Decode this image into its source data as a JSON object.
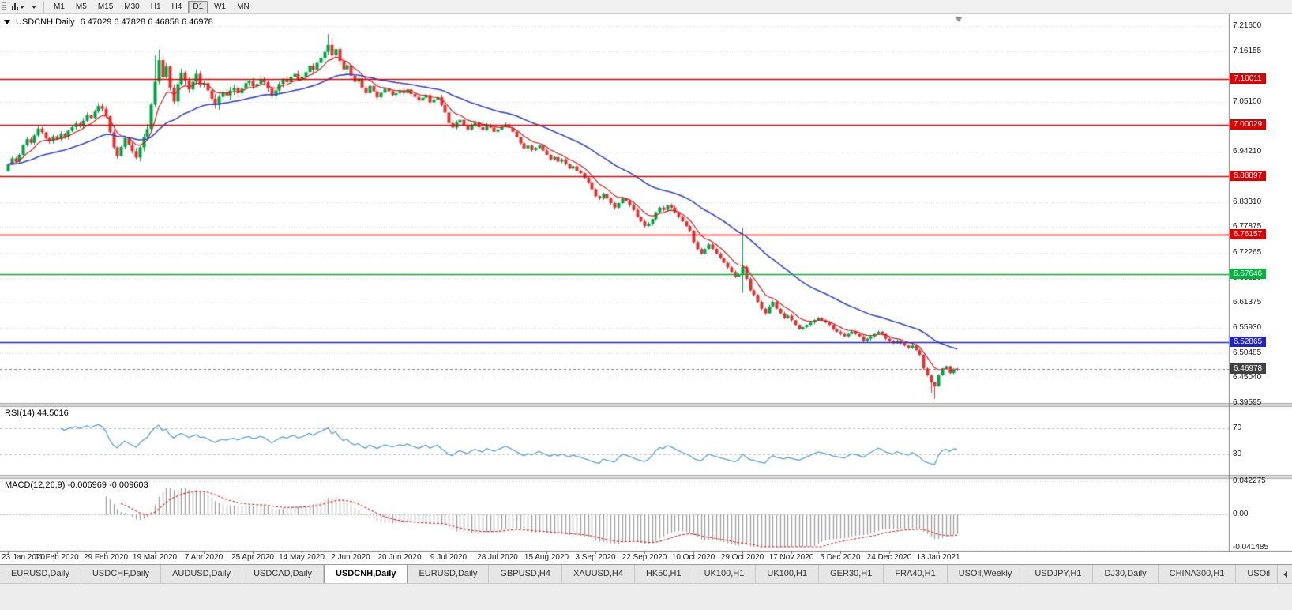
{
  "toolbar": {
    "timeframes": [
      {
        "label": "M1",
        "active": false
      },
      {
        "label": "M5",
        "active": false
      },
      {
        "label": "M15",
        "active": false
      },
      {
        "label": "M30",
        "active": false
      },
      {
        "label": "H1",
        "active": false
      },
      {
        "label": "H4",
        "active": false
      },
      {
        "label": "D1",
        "active": true
      },
      {
        "label": "W1",
        "active": false
      },
      {
        "label": "MN",
        "active": false
      }
    ],
    "icons": [
      "chart-type-icon",
      "dropdown-caret-icon"
    ]
  },
  "chart": {
    "symbol": "USDCNH,Daily",
    "ohlc_text": "6.47029 6.47828 6.46858 6.46978",
    "chart_data": {
      "type": "candlestick",
      "symbol": "USDCNH",
      "timeframe": "Daily",
      "ohlc_last": {
        "open": 6.47029,
        "high": 6.47828,
        "low": 6.46858,
        "close": 6.46978
      },
      "price_axis_labels": [
        "7.21600",
        "7.16155",
        "7.05100",
        "6.94210",
        "6.83310",
        "6.77875",
        "6.72265",
        "6.66820",
        "6.61375",
        "6.55930",
        "6.50485",
        "6.45040",
        "6.39595"
      ],
      "x_axis_dates": [
        "23 Jan 2020",
        "11 Feb 2020",
        "29 Feb 2020",
        "19 Mar 2020",
        "7 Apr 2020",
        "25 Apr 2020",
        "14 May 2020",
        "2 Jun 2020",
        "20 Jun 2020",
        "9 Jul 2020",
        "28 Jul 2020",
        "15 Aug 2020",
        "3 Sep 2020",
        "22 Sep 2020",
        "10 Oct 2020",
        "29 Oct 2020",
        "17 Nov 2020",
        "5 Dec 2020",
        "24 Dec 2020",
        "13 Jan 2021"
      ],
      "levels": [
        {
          "label": "7.10011",
          "price": 7.10011,
          "color": "#dd0000",
          "kind": "horizontal-line"
        },
        {
          "label": "7.00029",
          "price": 7.00029,
          "color": "#dd0000",
          "kind": "horizontal-line"
        },
        {
          "label": "6.88897",
          "price": 6.88897,
          "color": "#dd0000",
          "kind": "horizontal-line"
        },
        {
          "label": "6.76157",
          "price": 6.76157,
          "color": "#dd0000",
          "kind": "horizontal-line"
        },
        {
          "label": "6.67646",
          "price": 6.67646,
          "color": "#00b33c",
          "kind": "horizontal-line"
        },
        {
          "label": "6.52865",
          "price": 6.52865,
          "color": "#2222cc",
          "kind": "horizontal-line"
        },
        {
          "label": "6.46978",
          "price": 6.46978,
          "color": "#404040",
          "kind": "last-price"
        }
      ],
      "visible_price_range": [
        6.396,
        7.2418
      ],
      "first_open": 6.9,
      "closes": [
        6.915,
        6.928,
        6.921,
        6.936,
        6.957,
        6.97,
        6.962,
        6.978,
        6.993,
        6.985,
        6.972,
        6.965,
        6.976,
        6.97,
        6.982,
        6.975,
        6.988,
        6.996,
        7.004,
        6.998,
        7.01,
        7.022,
        7.016,
        7.03,
        7.042,
        7.036,
        7.02,
        6.985,
        6.952,
        6.933,
        6.953,
        6.972,
        6.958,
        6.944,
        6.93,
        6.952,
        6.975,
        6.992,
        7.045,
        7.095,
        7.142,
        7.105,
        7.128,
        7.082,
        7.052,
        7.09,
        7.115,
        7.098,
        7.078,
        7.095,
        7.112,
        7.088,
        7.092,
        7.076,
        7.058,
        7.044,
        7.062,
        7.072,
        7.065,
        7.076,
        7.082,
        7.07,
        7.08,
        7.092,
        7.096,
        7.085,
        7.09,
        7.1,
        7.094,
        7.08,
        7.064,
        7.076,
        7.09,
        7.101,
        7.094,
        7.106,
        7.112,
        7.1,
        7.106,
        7.116,
        7.13,
        7.121,
        7.136,
        7.146,
        7.16,
        7.175,
        7.152,
        7.166,
        7.14,
        7.122,
        7.131,
        7.108,
        7.095,
        7.102,
        7.082,
        7.07,
        7.086,
        7.074,
        7.061,
        7.071,
        7.08,
        7.074,
        7.066,
        7.07,
        7.076,
        7.07,
        7.078,
        7.068,
        7.062,
        7.054,
        7.06,
        7.066,
        7.05,
        7.056,
        7.061,
        7.044,
        7.028,
        7.005,
        6.995,
        7.006,
        7.012,
        7.001,
        6.991,
        7.0,
        7.006,
        6.996,
        6.99,
        7.001,
        6.995,
        6.986,
        6.991,
        6.996,
        7.002,
        6.995,
        6.986,
        6.975,
        6.961,
        6.95,
        6.956,
        6.946,
        6.951,
        6.956,
        6.945,
        6.936,
        6.926,
        6.931,
        6.921,
        6.926,
        6.916,
        6.906,
        6.911,
        6.901,
        6.896,
        6.886,
        6.876,
        6.861,
        6.846,
        6.841,
        6.851,
        6.841,
        6.831,
        6.821,
        6.831,
        6.841,
        6.836,
        6.826,
        6.816,
        6.801,
        6.791,
        6.781,
        6.786,
        6.796,
        6.811,
        6.821,
        6.816,
        6.826,
        6.821,
        6.811,
        6.801,
        6.791,
        6.781,
        6.771,
        6.746,
        6.731,
        6.721,
        6.731,
        6.741,
        6.731,
        6.721,
        6.711,
        6.701,
        6.691,
        6.681,
        6.671,
        6.676,
        6.692,
        6.666,
        6.641,
        6.631,
        6.616,
        6.601,
        6.591,
        6.606,
        6.616,
        6.601,
        6.591,
        6.581,
        6.586,
        6.576,
        6.566,
        6.556,
        6.561,
        6.566,
        6.571,
        6.576,
        6.581,
        6.576,
        6.571,
        6.566,
        6.556,
        6.551,
        6.546,
        6.541,
        6.546,
        6.551,
        6.546,
        6.541,
        6.531,
        6.536,
        6.541,
        6.546,
        6.551,
        6.546,
        6.536,
        6.531,
        6.526,
        6.531,
        6.526,
        6.521,
        6.516,
        6.521,
        6.511,
        6.501,
        6.471,
        6.456,
        6.441,
        6.432,
        6.456,
        6.471,
        6.476,
        6.461,
        6.4703,
        6.4698
      ],
      "spikes": [
        {
          "i": 8,
          "high": 7.0005
        },
        {
          "i": 25,
          "high": 7.048
        },
        {
          "i": 39,
          "high": 7.152
        },
        {
          "i": 40,
          "high": 7.1648
        },
        {
          "i": 85,
          "high": 7.1985
        },
        {
          "i": 86,
          "high": 7.19
        },
        {
          "i": 195,
          "high": 6.778,
          "low": 6.636
        },
        {
          "i": 245,
          "low": 6.418
        },
        {
          "i": 246,
          "low": 6.405
        }
      ],
      "colors": {
        "up": "#00a344",
        "down": "#dd3333",
        "ma_fast": "#d02020",
        "ma_slow": "#3344cc"
      },
      "ma_fast_period": 8,
      "ma_slow_period": 34
    }
  },
  "rsi_panel": {
    "label": "RSI(14) 44.5016",
    "period": 14,
    "value": 44.5016,
    "level_labels": [
      "70",
      "30"
    ],
    "line_color": "#58a0d8"
  },
  "macd_panel": {
    "label": "MACD(12,26,9) -0.006969 -0.009603",
    "macd_value": -0.006969,
    "signal_value": -0.009603,
    "axis_labels": [
      "0.042275",
      "0.00",
      "-0.041485"
    ],
    "histogram_color": "#9a9a9a",
    "signal_color": "#dd2222"
  },
  "tab_bar": {
    "tabs": [
      {
        "label": "EURUSD,Daily",
        "active": false
      },
      {
        "label": "USDCHF,Daily",
        "active": false
      },
      {
        "label": "AUDUSD,Daily",
        "active": false
      },
      {
        "label": "USDCAD,Daily",
        "active": false
      },
      {
        "label": "USDCNH,Daily",
        "active": true
      },
      {
        "label": "EURUSD,Daily",
        "active": false
      },
      {
        "label": "GBPUSD,H4",
        "active": false
      },
      {
        "label": "XAUUSD,H4",
        "active": false
      },
      {
        "label": "HK50,H1",
        "active": false
      },
      {
        "label": "UK100,H1",
        "active": false
      },
      {
        "label": "UK100,H1",
        "active": false
      },
      {
        "label": "GER30,H1",
        "active": false
      },
      {
        "label": "FRA40,H1",
        "active": false
      },
      {
        "label": "USOil,Weekly",
        "active": false
      },
      {
        "label": "USDJPY,H1",
        "active": false
      },
      {
        "label": "DJ30,Daily",
        "active": false
      },
      {
        "label": "CHINA300,H1",
        "active": false
      },
      {
        "label": "USOil",
        "active": false
      }
    ]
  }
}
